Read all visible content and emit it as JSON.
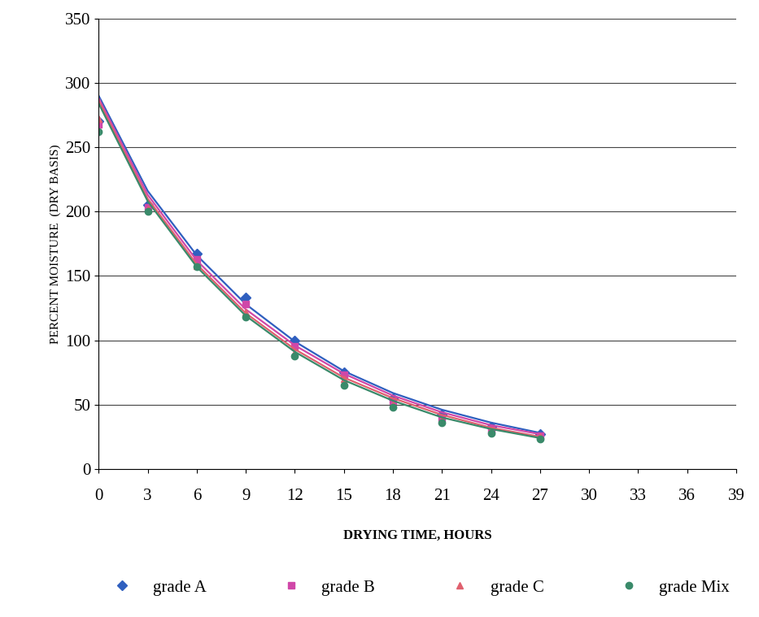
{
  "chart_data": {
    "type": "line",
    "x_label": "DRYING TIME, HOURS",
    "y_label": "PERCENT MOISTURE  (DRY BASIS)",
    "x": [
      0,
      3,
      6,
      9,
      12,
      15,
      18,
      21,
      24,
      27
    ],
    "series": [
      {
        "name": "grade A",
        "color": "#2f5fbf",
        "marker": "diamond",
        "line_style": "solid",
        "values": [
          270,
          205,
          167,
          133,
          100,
          75,
          55,
          42,
          33,
          27
        ],
        "trend": [
          290,
          216,
          166,
          128,
          99,
          76,
          59,
          46,
          36,
          28
        ]
      },
      {
        "name": "grade B",
        "color": "#d047a8",
        "marker": "square",
        "line_style": "solid",
        "values": [
          268,
          203,
          163,
          128,
          95,
          73,
          53,
          40,
          31,
          26
        ],
        "trend": [
          288,
          213,
          162,
          124,
          96,
          74,
          57,
          44,
          34,
          27
        ]
      },
      {
        "name": "grade C",
        "color": "#e0606e",
        "marker": "triangle",
        "line_style": "solid",
        "values": [
          272,
          202,
          158,
          122,
          90,
          70,
          50,
          38,
          30,
          25
        ],
        "trend": [
          286,
          210,
          159,
          121,
          93,
          71,
          55,
          42,
          32,
          25
        ]
      },
      {
        "name": "grade Mix",
        "color": "#3a8a6a",
        "marker": "circle",
        "line_style": "solid",
        "values": [
          262,
          200,
          157,
          118,
          88,
          65,
          48,
          36,
          28,
          23
        ],
        "trend": [
          284,
          208,
          157,
          119,
          91,
          69,
          53,
          40,
          31,
          24
        ]
      }
    ],
    "xlim": [
      0,
      39
    ],
    "xticks": [
      0,
      3,
      6,
      9,
      12,
      15,
      18,
      21,
      24,
      27,
      30,
      33,
      36,
      39
    ],
    "ylim": [
      0,
      350
    ],
    "yticks": [
      0,
      50,
      100,
      150,
      200,
      250,
      300,
      350
    ],
    "grid": true,
    "legend": "bottom"
  }
}
